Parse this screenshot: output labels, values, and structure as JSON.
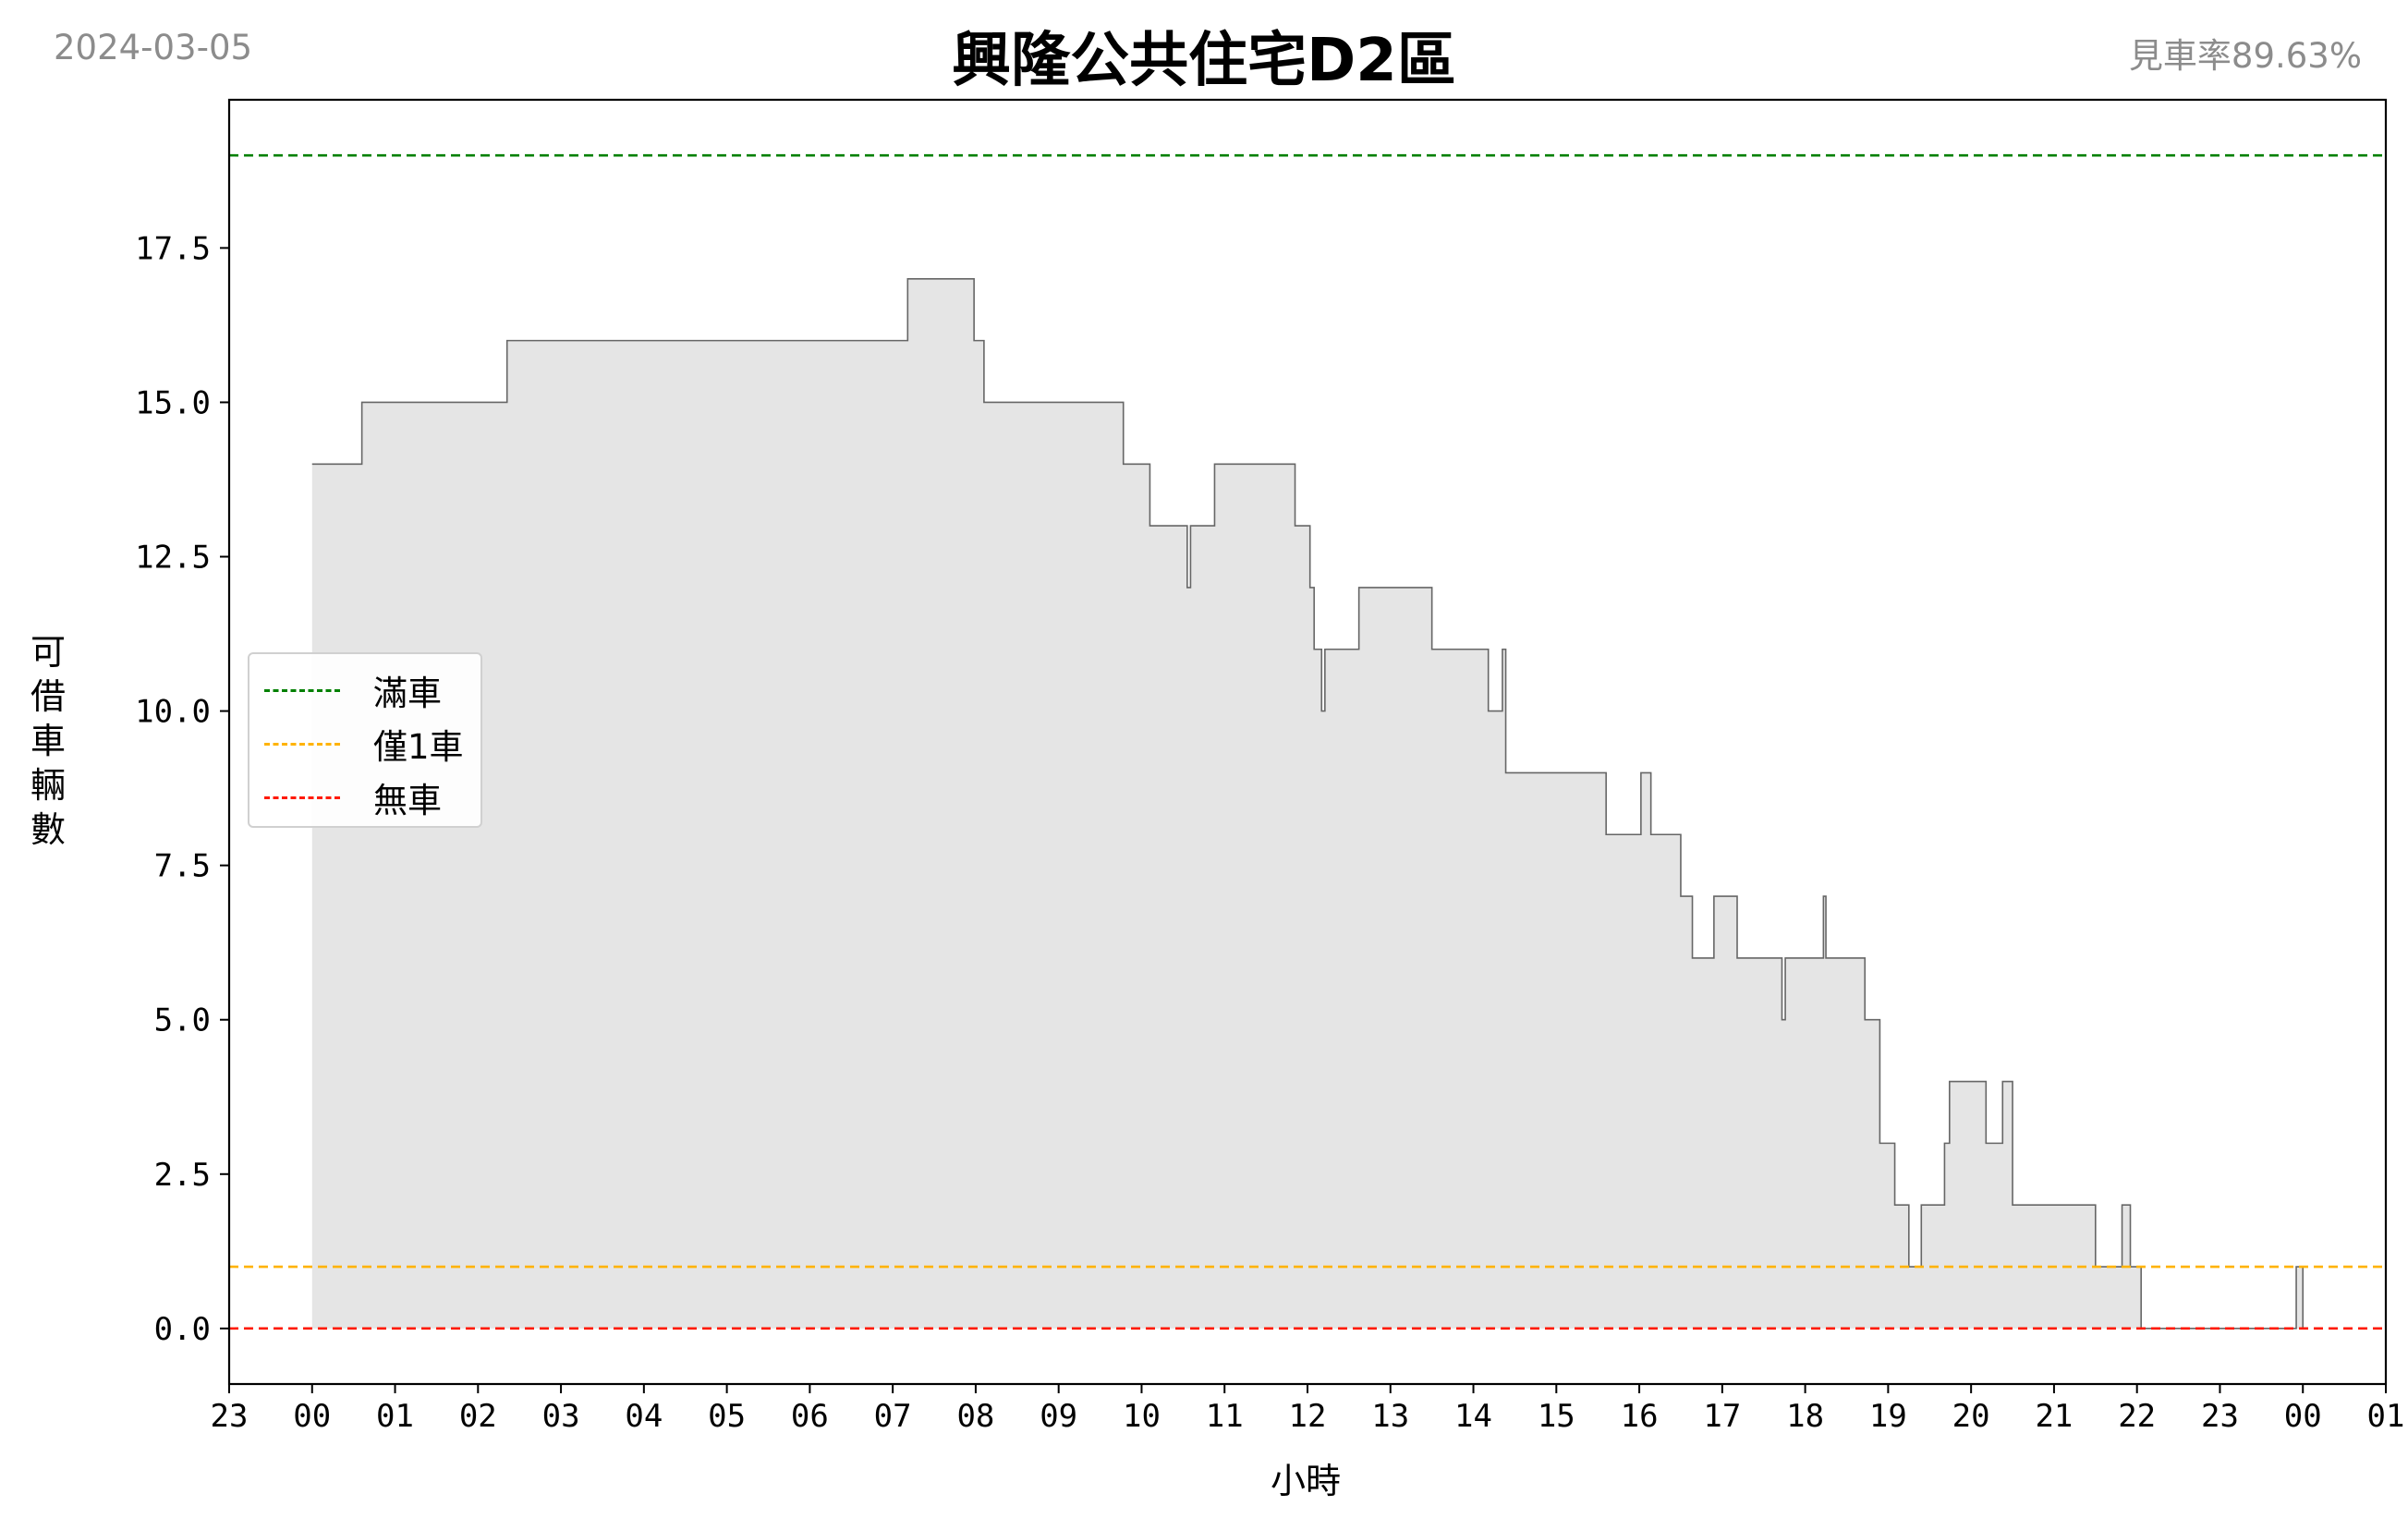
{
  "header": {
    "date": "2024-03-05",
    "title": "興隆公共住宅D2區",
    "availability_rate": "見車率89.63%"
  },
  "chart_data": {
    "type": "area",
    "title": "興隆公共住宅D2區",
    "xlabel": "小時",
    "ylabel": "可借車輛數",
    "x_unit": "hour",
    "xlim": [
      -1,
      25
    ],
    "ylim": [
      -0.9,
      19.9
    ],
    "x_ticks": [
      {
        "x": -1,
        "label": "23"
      },
      {
        "x": 0,
        "label": "00"
      },
      {
        "x": 1,
        "label": "01"
      },
      {
        "x": 2,
        "label": "02"
      },
      {
        "x": 3,
        "label": "03"
      },
      {
        "x": 4,
        "label": "04"
      },
      {
        "x": 5,
        "label": "05"
      },
      {
        "x": 6,
        "label": "06"
      },
      {
        "x": 7,
        "label": "07"
      },
      {
        "x": 8,
        "label": "08"
      },
      {
        "x": 9,
        "label": "09"
      },
      {
        "x": 10,
        "label": "10"
      },
      {
        "x": 11,
        "label": "11"
      },
      {
        "x": 12,
        "label": "12"
      },
      {
        "x": 13,
        "label": "13"
      },
      {
        "x": 14,
        "label": "14"
      },
      {
        "x": 15,
        "label": "15"
      },
      {
        "x": 16,
        "label": "16"
      },
      {
        "x": 17,
        "label": "17"
      },
      {
        "x": 18,
        "label": "18"
      },
      {
        "x": 19,
        "label": "19"
      },
      {
        "x": 20,
        "label": "20"
      },
      {
        "x": 21,
        "label": "21"
      },
      {
        "x": 22,
        "label": "22"
      },
      {
        "x": 23,
        "label": "23"
      },
      {
        "x": 24,
        "label": "00"
      },
      {
        "x": 25,
        "label": "01"
      }
    ],
    "y_ticks": [
      {
        "y": 0,
        "label": "0.0"
      },
      {
        "y": 2.5,
        "label": "2.5"
      },
      {
        "y": 5,
        "label": "5.0"
      },
      {
        "y": 7.5,
        "label": "7.5"
      },
      {
        "y": 10,
        "label": "10.0"
      },
      {
        "y": 12.5,
        "label": "12.5"
      },
      {
        "y": 15,
        "label": "15.0"
      },
      {
        "y": 17.5,
        "label": "17.5"
      }
    ],
    "reference_lines": [
      {
        "name": "滿車",
        "y": 19,
        "color": "#008000"
      },
      {
        "name": "僅1車",
        "y": 1,
        "color": "#ffb300"
      },
      {
        "name": "無車",
        "y": 0,
        "color": "#ff1a00"
      }
    ],
    "legend": {
      "position": "center-left"
    },
    "series": [
      {
        "fill_color": "#e5e5e5",
        "line_color": "#666666",
        "step_points": [
          [
            0.0,
            14
          ],
          [
            0.6,
            15
          ],
          [
            2.35,
            16
          ],
          [
            7.18,
            17
          ],
          [
            7.98,
            16
          ],
          [
            8.1,
            15
          ],
          [
            9.78,
            14
          ],
          [
            10.1,
            13
          ],
          [
            10.55,
            12
          ],
          [
            10.59,
            13
          ],
          [
            10.88,
            14
          ],
          [
            11.85,
            13
          ],
          [
            12.03,
            12
          ],
          [
            12.08,
            11
          ],
          [
            12.17,
            10
          ],
          [
            12.21,
            11
          ],
          [
            12.62,
            12
          ],
          [
            13.5,
            11
          ],
          [
            14.18,
            10
          ],
          [
            14.35,
            11
          ],
          [
            14.39,
            9
          ],
          [
            15.6,
            8
          ],
          [
            16.02,
            9
          ],
          [
            16.14,
            8
          ],
          [
            16.5,
            7
          ],
          [
            16.64,
            6
          ],
          [
            16.9,
            7
          ],
          [
            17.18,
            6
          ],
          [
            17.72,
            5
          ],
          [
            17.76,
            6
          ],
          [
            18.22,
            7
          ],
          [
            18.25,
            6
          ],
          [
            18.72,
            5
          ],
          [
            18.9,
            3
          ],
          [
            19.08,
            2
          ],
          [
            19.25,
            1
          ],
          [
            19.4,
            2
          ],
          [
            19.68,
            3
          ],
          [
            19.74,
            4
          ],
          [
            20.18,
            3
          ],
          [
            20.38,
            4
          ],
          [
            20.5,
            2
          ],
          [
            21.5,
            1
          ],
          [
            21.82,
            2
          ],
          [
            21.92,
            1
          ],
          [
            22.05,
            0
          ],
          [
            23.92,
            1
          ],
          [
            24.0,
            0
          ]
        ]
      }
    ]
  }
}
